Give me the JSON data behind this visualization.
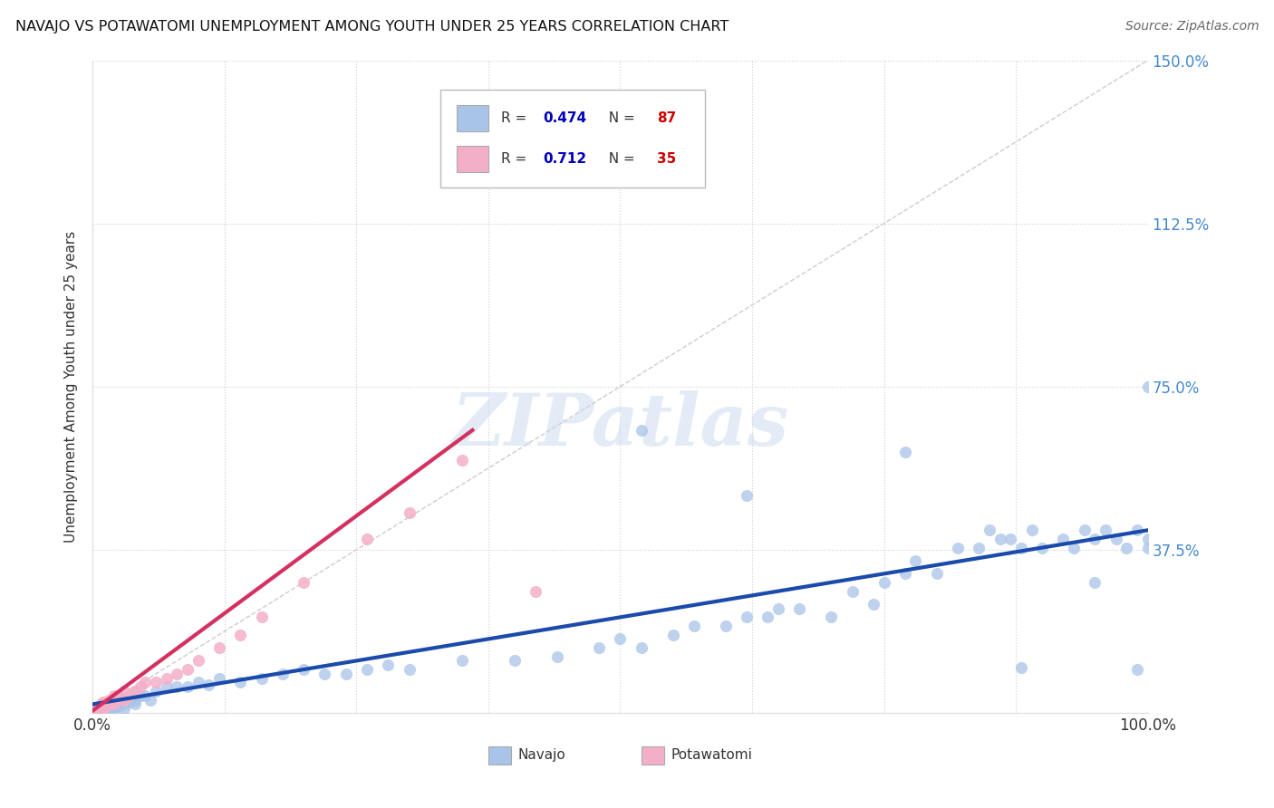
{
  "title": "NAVAJO VS POTAWATOMI UNEMPLOYMENT AMONG YOUTH UNDER 25 YEARS CORRELATION CHART",
  "source": "Source: ZipAtlas.com",
  "ylabel": "Unemployment Among Youth under 25 years",
  "xlim": [
    0.0,
    1.0
  ],
  "ylim": [
    0.0,
    1.5
  ],
  "ytick_positions": [
    0.0,
    0.375,
    0.75,
    1.125,
    1.5
  ],
  "ytick_labels": [
    "",
    "37.5%",
    "75.0%",
    "112.5%",
    "150.0%"
  ],
  "xtick_positions": [
    0.0,
    0.125,
    0.25,
    0.375,
    0.5,
    0.625,
    0.75,
    0.875,
    1.0
  ],
  "xtick_labels": [
    "0.0%",
    "",
    "",
    "",
    "",
    "",
    "",
    "",
    "100.0%"
  ],
  "navajo_R": "0.474",
  "navajo_N": "87",
  "potawatomi_R": "0.712",
  "potawatomi_N": "35",
  "navajo_color": "#a8c4e8",
  "potawatomi_color": "#f4afc8",
  "navajo_line_color": "#1a4aaa",
  "potawatomi_line_color": "#d43060",
  "ref_line_color": "#c0c0c0",
  "background_color": "#ffffff",
  "watermark_text": "ZIPatlas",
  "tick_label_color": "#4488cc",
  "R_text_color": "#0000bb",
  "N_text_color": "#cc0000",
  "navajo_trend_x0": 0.0,
  "navajo_trend_y0": 0.02,
  "navajo_trend_x1": 1.0,
  "navajo_trend_y1": 0.42,
  "potawatomi_trend_x0": 0.0,
  "potawatomi_trend_y0": 0.005,
  "potawatomi_trend_x1": 0.36,
  "potawatomi_trend_y1": 0.65,
  "navajo_x": [
    0.005,
    0.008,
    0.01,
    0.01,
    0.01,
    0.012,
    0.015,
    0.015,
    0.018,
    0.02,
    0.02,
    0.02,
    0.02,
    0.022,
    0.025,
    0.025,
    0.03,
    0.03,
    0.03,
    0.035,
    0.04,
    0.04,
    0.04,
    0.045,
    0.05,
    0.055,
    0.06,
    0.07,
    0.08,
    0.09,
    0.1,
    0.11,
    0.12,
    0.14,
    0.16,
    0.18,
    0.2,
    0.22,
    0.24,
    0.26,
    0.28,
    0.3,
    0.35,
    0.4,
    0.44,
    0.48,
    0.5,
    0.52,
    0.55,
    0.57,
    0.6,
    0.62,
    0.64,
    0.65,
    0.67,
    0.7,
    0.72,
    0.74,
    0.75,
    0.77,
    0.78,
    0.8,
    0.82,
    0.84,
    0.85,
    0.86,
    0.87,
    0.88,
    0.89,
    0.9,
    0.92,
    0.93,
    0.94,
    0.95,
    0.96,
    0.97,
    0.98,
    0.99,
    1.0,
    1.0,
    1.0,
    0.52,
    0.62,
    0.77,
    0.88,
    0.95,
    0.99
  ],
  "navajo_y": [
    0.01,
    0.02,
    0.01,
    0.015,
    0.02,
    0.015,
    0.01,
    0.02,
    0.015,
    0.01,
    0.015,
    0.02,
    0.025,
    0.02,
    0.015,
    0.03,
    0.01,
    0.02,
    0.03,
    0.025,
    0.02,
    0.03,
    0.05,
    0.04,
    0.04,
    0.03,
    0.05,
    0.06,
    0.06,
    0.06,
    0.07,
    0.065,
    0.08,
    0.07,
    0.08,
    0.09,
    0.1,
    0.09,
    0.09,
    0.1,
    0.11,
    0.1,
    0.12,
    0.12,
    0.13,
    0.15,
    0.17,
    0.15,
    0.18,
    0.2,
    0.2,
    0.22,
    0.22,
    0.24,
    0.24,
    0.22,
    0.28,
    0.25,
    0.3,
    0.32,
    0.35,
    0.32,
    0.38,
    0.38,
    0.42,
    0.4,
    0.4,
    0.38,
    0.42,
    0.38,
    0.4,
    0.38,
    0.42,
    0.4,
    0.42,
    0.4,
    0.38,
    0.42,
    0.4,
    0.38,
    0.75,
    0.65,
    0.5,
    0.6,
    0.105,
    0.3,
    0.1
  ],
  "potawatomi_x": [
    0.002,
    0.005,
    0.007,
    0.008,
    0.01,
    0.01,
    0.01,
    0.012,
    0.015,
    0.015,
    0.018,
    0.02,
    0.02,
    0.02,
    0.022,
    0.025,
    0.03,
    0.03,
    0.035,
    0.04,
    0.045,
    0.05,
    0.06,
    0.07,
    0.08,
    0.09,
    0.1,
    0.12,
    0.14,
    0.16,
    0.2,
    0.26,
    0.3,
    0.35,
    0.42
  ],
  "potawatomi_y": [
    0.005,
    0.01,
    0.015,
    0.02,
    0.01,
    0.02,
    0.025,
    0.015,
    0.02,
    0.03,
    0.025,
    0.02,
    0.03,
    0.04,
    0.03,
    0.04,
    0.03,
    0.05,
    0.04,
    0.05,
    0.06,
    0.07,
    0.07,
    0.08,
    0.09,
    0.1,
    0.12,
    0.15,
    0.18,
    0.22,
    0.3,
    0.4,
    0.46,
    0.58,
    0.28
  ]
}
